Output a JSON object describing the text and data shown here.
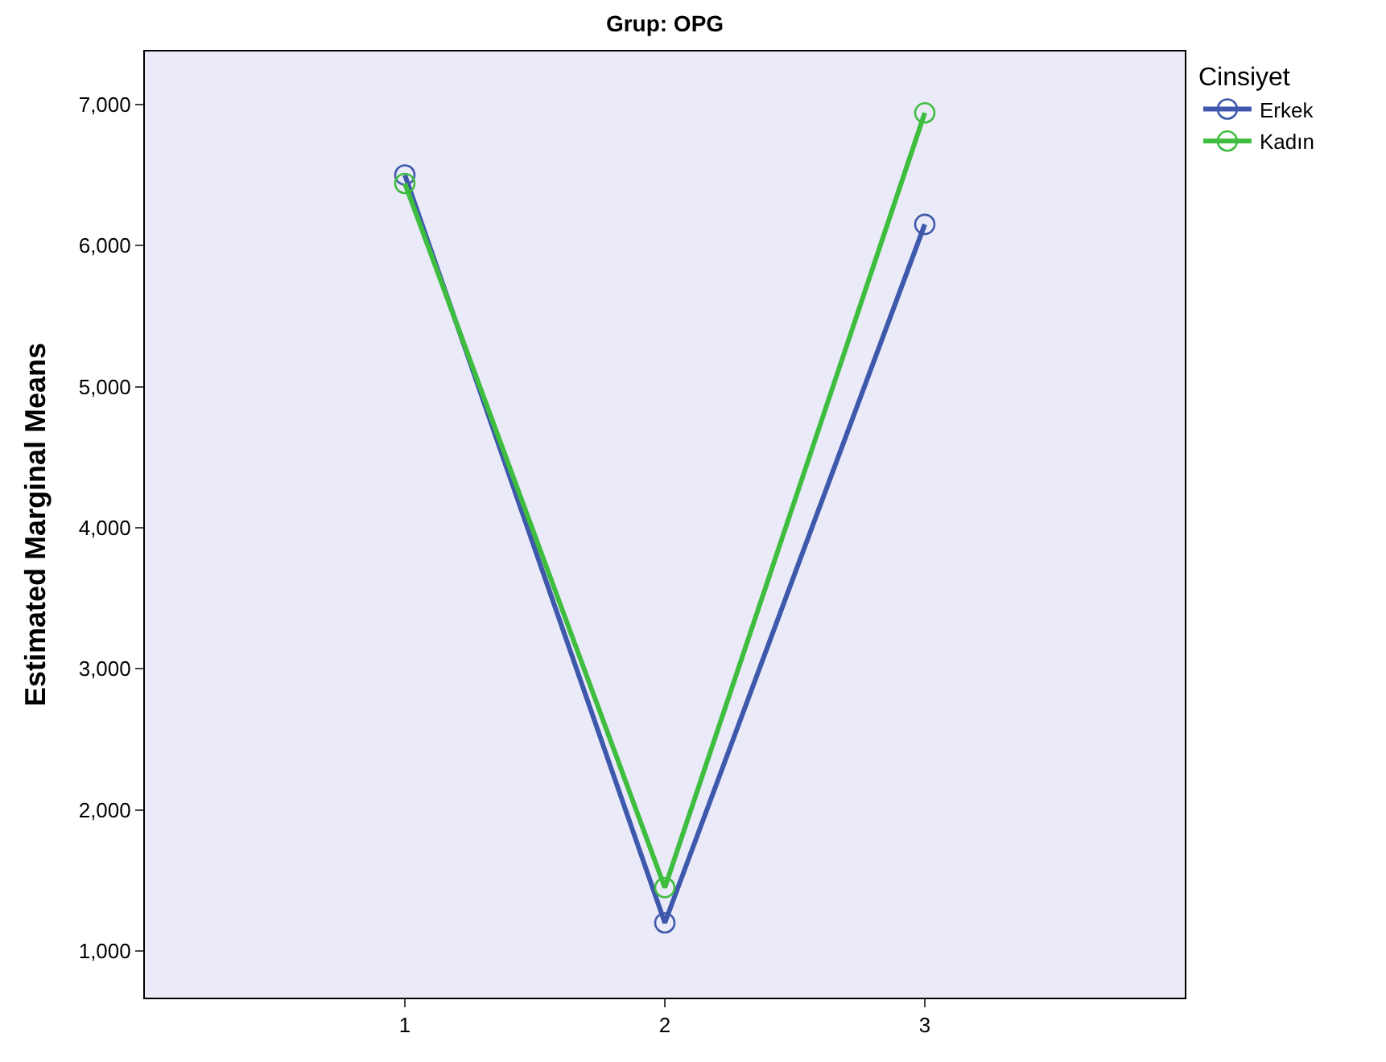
{
  "chart_data": {
    "type": "line",
    "title": "Grup: OPG",
    "ylabel": "Estimated Marginal Means",
    "legend_title": "Cinsiyet",
    "x": [
      1,
      2,
      3
    ],
    "xlim": [
      0,
      4
    ],
    "xticks": [
      1,
      2,
      3
    ],
    "ylim": [
      670,
      7375
    ],
    "yticks": [
      {
        "value": 1000,
        "label": "1,000"
      },
      {
        "value": 2000,
        "label": "2,000"
      },
      {
        "value": 3000,
        "label": "3,000"
      },
      {
        "value": 4000,
        "label": "4,000"
      },
      {
        "value": 5000,
        "label": "5,000"
      },
      {
        "value": 6000,
        "label": "6,000"
      },
      {
        "value": 7000,
        "label": "7,000"
      }
    ],
    "series": [
      {
        "name": "Erkek",
        "color": "#3e58ac",
        "values": [
          6500,
          1200,
          6150
        ]
      },
      {
        "name": "Kadın",
        "color": "#3fbd3f",
        "values": [
          6440,
          1450,
          6940
        ]
      }
    ],
    "marker": "circle",
    "grid": false,
    "legend": "top right"
  }
}
